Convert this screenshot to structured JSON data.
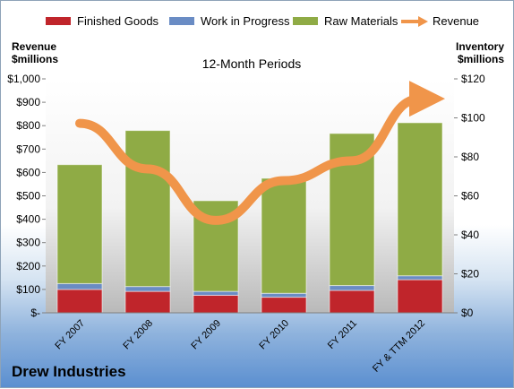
{
  "chart_data": {
    "type": "bar",
    "subtitle": "12-Month Periods",
    "company": "Drew Industries",
    "left_axis": {
      "label_line1": "Revenue",
      "label_line2": "$millions",
      "min": 0,
      "max": 1000,
      "ticks": [
        "$-",
        "$100",
        "$200",
        "$300",
        "$400",
        "$500",
        "$600",
        "$700",
        "$800",
        "$900",
        "$1,000"
      ]
    },
    "right_axis": {
      "label_line1": "Inventory",
      "label_line2": "$millions",
      "min": 0,
      "max": 120,
      "ticks": [
        "$0",
        "$20",
        "$40",
        "$60",
        "$80",
        "$100",
        "$120"
      ]
    },
    "categories": [
      "FY 2007",
      "FY 2008",
      "FY 2009",
      "FY 2010",
      "FY 2011",
      "FY & TTM 2012"
    ],
    "stacked": true,
    "series": [
      {
        "name": "Finished Goods",
        "axis": "right",
        "color": "#c0252b",
        "values": [
          12,
          11,
          9,
          8,
          11.5,
          17
        ]
      },
      {
        "name": "Work in Progress",
        "axis": "right",
        "color": "#6a8cc4",
        "values": [
          3,
          2.5,
          2,
          2,
          2.5,
          2
        ]
      },
      {
        "name": "Raw Materials",
        "axis": "right",
        "color": "#8fab45",
        "values": [
          61,
          80,
          46.5,
          59,
          78,
          78.5
        ]
      },
      {
        "name": "Revenue",
        "axis": "left",
        "type": "line",
        "color": "#f0954a",
        "values": [
          810,
          615,
          395,
          565,
          650,
          915
        ]
      }
    ],
    "legend_position": "top",
    "grid": false
  }
}
